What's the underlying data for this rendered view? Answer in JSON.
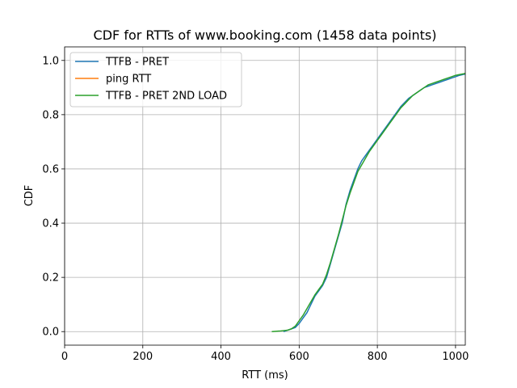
{
  "chart_data": {
    "type": "line",
    "title": "CDF for RTTs of www.booking.com (1458 data points)",
    "xlabel": "RTT (ms)",
    "ylabel": "CDF",
    "xlim": [
      0,
      1025
    ],
    "ylim": [
      -0.05,
      1.05
    ],
    "xticks": [
      0,
      200,
      400,
      600,
      800,
      1000
    ],
    "yticks": [
      0.0,
      0.2,
      0.4,
      0.6,
      0.8,
      1.0
    ],
    "xtick_labels": [
      "0",
      "200",
      "400",
      "600",
      "800",
      "1000"
    ],
    "ytick_labels": [
      "0.0",
      "0.2",
      "0.4",
      "0.6",
      "0.8",
      "1.0"
    ],
    "grid": true,
    "legend_position": "top-left",
    "series": [
      {
        "name": "TTFB - PRET",
        "color": "#1f77b4",
        "x": [
          560,
          570,
          580,
          590,
          600,
          610,
          620,
          630,
          640,
          650,
          660,
          670,
          680,
          690,
          700,
          710,
          720,
          730,
          740,
          750,
          760,
          770,
          780,
          790,
          800,
          810,
          820,
          830,
          840,
          850,
          860,
          870,
          880,
          890,
          900,
          910,
          920,
          930,
          940,
          950,
          960,
          970,
          980,
          990,
          1000,
          1010,
          1025
        ],
        "y": [
          0.0,
          0.005,
          0.01,
          0.015,
          0.03,
          0.05,
          0.07,
          0.1,
          0.13,
          0.15,
          0.17,
          0.2,
          0.25,
          0.3,
          0.35,
          0.4,
          0.47,
          0.52,
          0.56,
          0.6,
          0.63,
          0.65,
          0.67,
          0.69,
          0.71,
          0.73,
          0.75,
          0.77,
          0.79,
          0.81,
          0.83,
          0.845,
          0.86,
          0.87,
          0.88,
          0.89,
          0.9,
          0.905,
          0.91,
          0.915,
          0.92,
          0.925,
          0.93,
          0.935,
          0.94,
          0.945,
          0.95
        ]
      },
      {
        "name": "ping RTT",
        "color": "#ff7f0e",
        "x": [],
        "y": []
      },
      {
        "name": "TTFB - PRET 2ND LOAD",
        "color": "#2ca02c",
        "x": [
          530,
          550,
          570,
          580,
          590,
          600,
          610,
          620,
          630,
          640,
          650,
          660,
          670,
          680,
          690,
          700,
          710,
          720,
          730,
          740,
          750,
          760,
          770,
          780,
          790,
          800,
          810,
          820,
          830,
          840,
          850,
          860,
          870,
          880,
          890,
          900,
          910,
          920,
          930,
          940,
          950,
          960,
          970,
          980,
          990,
          1000,
          1010,
          1025
        ],
        "y": [
          0.0,
          0.002,
          0.005,
          0.01,
          0.02,
          0.04,
          0.06,
          0.085,
          0.11,
          0.135,
          0.155,
          0.175,
          0.21,
          0.255,
          0.305,
          0.355,
          0.41,
          0.465,
          0.51,
          0.55,
          0.59,
          0.615,
          0.64,
          0.665,
          0.685,
          0.705,
          0.725,
          0.745,
          0.765,
          0.785,
          0.805,
          0.825,
          0.84,
          0.855,
          0.87,
          0.88,
          0.89,
          0.9,
          0.91,
          0.915,
          0.92,
          0.925,
          0.93,
          0.935,
          0.94,
          0.945,
          0.948,
          0.952
        ]
      }
    ]
  }
}
